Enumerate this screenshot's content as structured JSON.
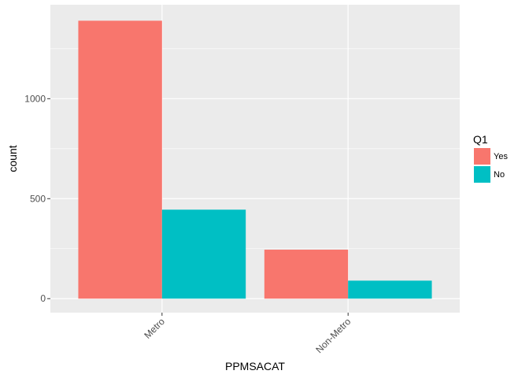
{
  "chart_data": {
    "type": "bar",
    "title": "",
    "xlabel": "PPMSACAT",
    "ylabel": "count",
    "categories": [
      "Metro",
      "Non-Metro"
    ],
    "series": [
      {
        "name": "Yes",
        "color": "#f8766d",
        "values": [
          1390,
          245
        ]
      },
      {
        "name": "No",
        "color": "#00bfc4",
        "values": [
          445,
          90
        ]
      }
    ],
    "ylim": [
      -70,
      1470
    ],
    "yticks": [
      0,
      500,
      1000
    ],
    "ytick_labels": [
      "0",
      "500",
      "1000"
    ],
    "legend": {
      "title": "Q1",
      "position": "right"
    },
    "grid": true,
    "panel_background": "#ebebeb",
    "grid_color": "#ffffff"
  }
}
